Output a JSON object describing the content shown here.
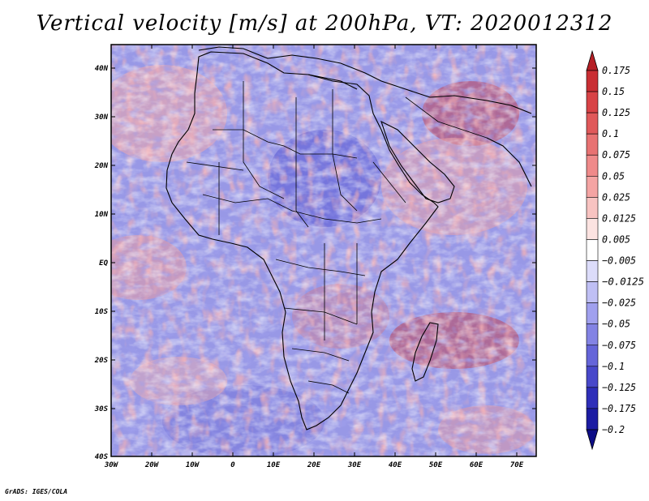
{
  "title": "Vertical velocity [m/s] at 200hPa, VT: 2020012312",
  "credit": "GrADS: IGES/COLA",
  "map": {
    "region": "Africa",
    "variable": "Vertical velocity",
    "units": "m/s",
    "level": "200hPa",
    "valid_time": "2020012312",
    "lon_labels": [
      "30W",
      "20W",
      "10W",
      "0",
      "10E",
      "20E",
      "30E",
      "40E",
      "50E",
      "60E",
      "70E"
    ],
    "lat_labels": [
      "40N",
      "30N",
      "20N",
      "10N",
      "EQ",
      "10S",
      "20S",
      "30S",
      "40S"
    ]
  },
  "colorbar": {
    "levels": [
      "0.175",
      "0.15",
      "0.125",
      "0.1",
      "0.075",
      "0.05",
      "0.025",
      "0.0125",
      "0.005",
      "−0.005",
      "−0.0125",
      "−0.025",
      "−0.05",
      "−0.075",
      "−0.1",
      "−0.125",
      "−0.175",
      "−0.2"
    ],
    "colors": [
      "#b51f25",
      "#c92e33",
      "#d84346",
      "#e0595a",
      "#e87272",
      "#ef8a8a",
      "#f4a4a3",
      "#f8c3c1",
      "#fce3e1",
      "#ffffff",
      "#dcdcfa",
      "#bfbff4",
      "#a0a0ee",
      "#8383e4",
      "#6565d9",
      "#4848ca",
      "#2e2eb9",
      "#1c1ca3",
      "#0d0d86"
    ]
  }
}
